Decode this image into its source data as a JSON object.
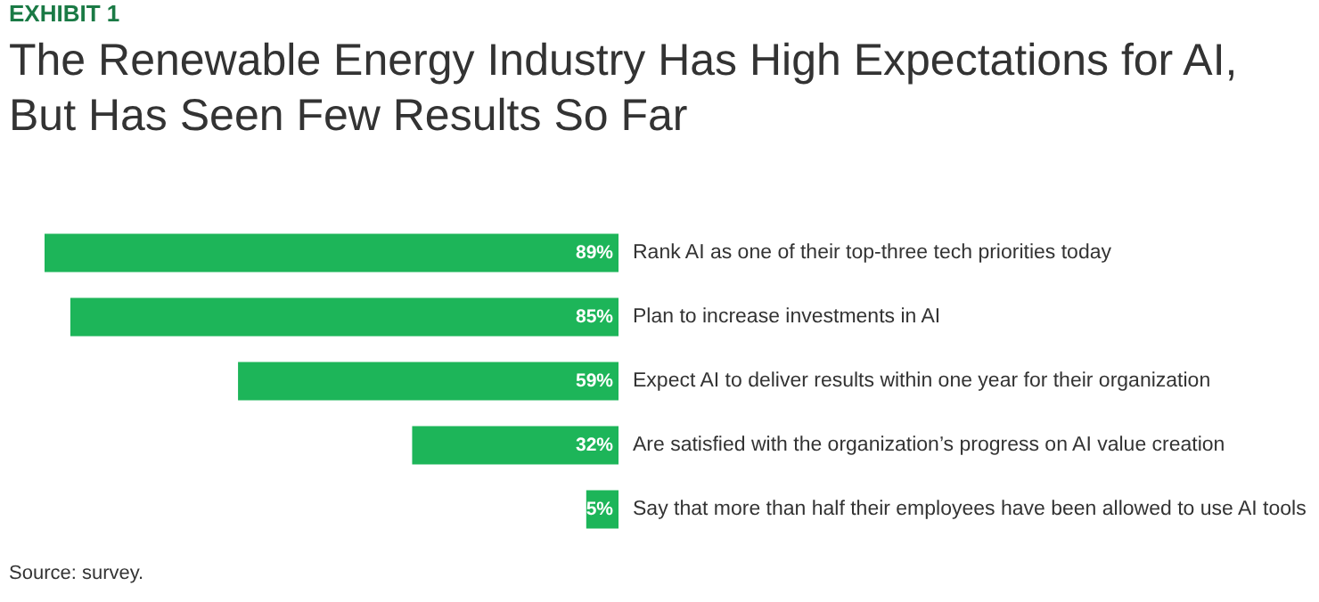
{
  "chart_data": {
    "type": "bar",
    "orientation": "horizontal",
    "data_labels": true,
    "title": "The Renewable Energy Industry Has High Expectations for AI,\nBut Has Seen Few Results So Far",
    "annotations": [
      "EXHIBIT 1",
      "Source: survey."
    ],
    "categories": [
      "Rank AI as one of their top-three tech priorities today",
      "Plan to increase investments in AI",
      "Expect AI to deliver results within one year for their organization",
      "Are satisfied with the organization’s progress on AI value creation",
      "Say that more than half their employees have been allowed to use AI tools"
    ],
    "values": [
      89,
      85,
      59,
      32,
      5
    ],
    "value_labels": [
      "89%",
      "85%",
      "59%",
      "32%",
      "5%"
    ],
    "color": "#1db559"
  }
}
